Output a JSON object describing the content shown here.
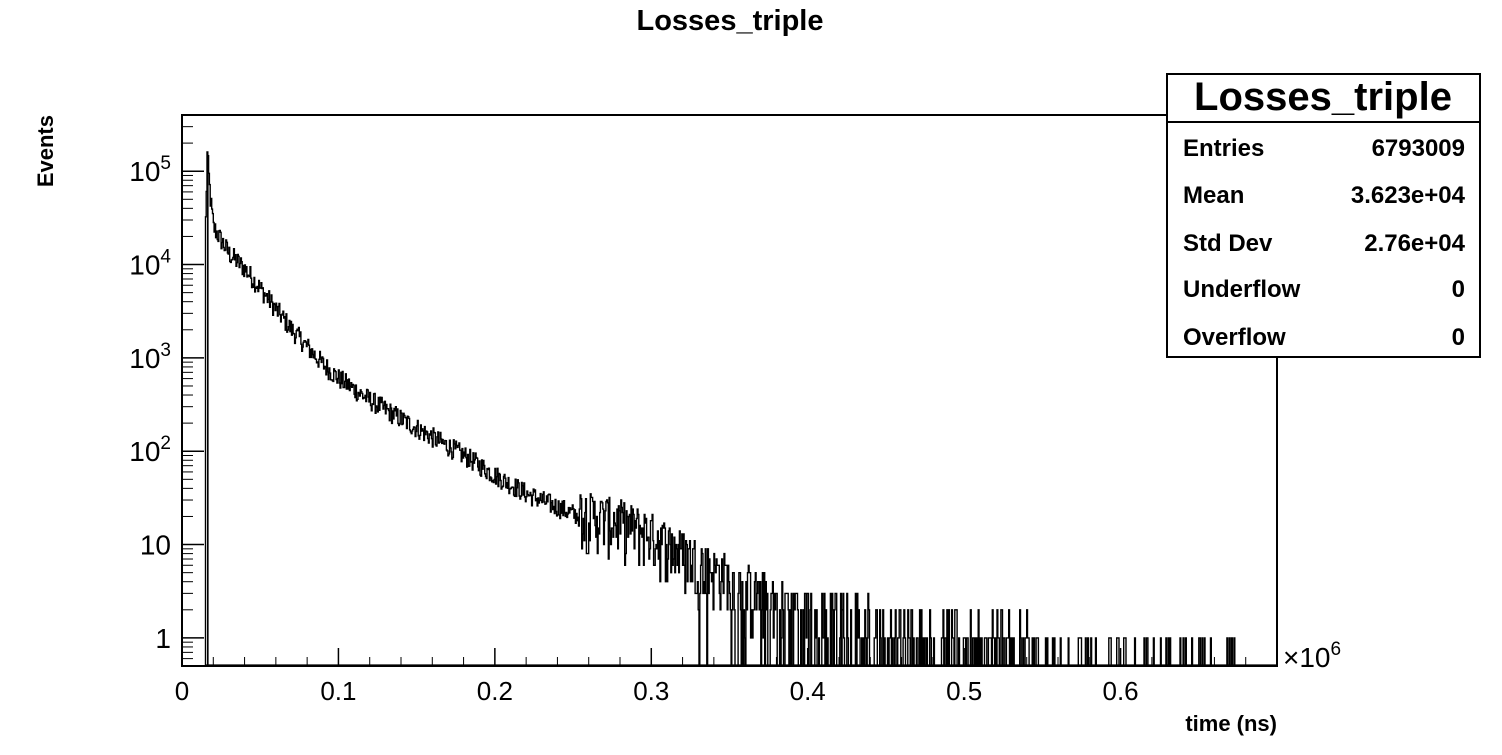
{
  "chart_data": {
    "type": "histogram",
    "title": "Losses_triple",
    "xlabel": "time (ns)",
    "ylabel": "Events",
    "x_multiplier_label": "×10",
    "x_multiplier_exp": "6",
    "xlim": [
      0,
      0.7
    ],
    "ylim": [
      0.5,
      400000
    ],
    "yscale": "log",
    "grid": false,
    "x_ticks": [
      {
        "value": 0,
        "label": "0"
      },
      {
        "value": 0.1,
        "label": "0.1"
      },
      {
        "value": 0.2,
        "label": "0.2"
      },
      {
        "value": 0.3,
        "label": "0.3"
      },
      {
        "value": 0.4,
        "label": "0.4"
      },
      {
        "value": 0.5,
        "label": "0.5"
      },
      {
        "value": 0.6,
        "label": "0.6"
      }
    ],
    "y_ticks": [
      {
        "value": 1,
        "base": "1",
        "exp": ""
      },
      {
        "value": 10,
        "base": "10",
        "exp": ""
      },
      {
        "value": 100,
        "base": "10",
        "exp": "2"
      },
      {
        "value": 1000,
        "base": "10",
        "exp": "3"
      },
      {
        "value": 10000,
        "base": "10",
        "exp": "4"
      },
      {
        "value": 100000,
        "base": "10",
        "exp": "5"
      }
    ],
    "series": [
      {
        "x": [
          0.015,
          0.016,
          0.018,
          0.02,
          0.025,
          0.03,
          0.04,
          0.05,
          0.06,
          0.07,
          0.08,
          0.09,
          0.1,
          0.12,
          0.14,
          0.16,
          0.18,
          0.2,
          0.22,
          0.24,
          0.26,
          0.28,
          0.3,
          0.32,
          0.34,
          0.36,
          0.38,
          0.4,
          0.42,
          0.44,
          0.46,
          0.48,
          0.5,
          0.53,
          0.56,
          0.6,
          0.63,
          0.66,
          0.68
        ],
        "y": [
          30000,
          150000,
          50000,
          25000,
          18000,
          13000,
          9000,
          5500,
          3300,
          2000,
          1300,
          850,
          600,
          350,
          220,
          140,
          90,
          55,
          35,
          25,
          18,
          15,
          11,
          7,
          4.5,
          3,
          2.2,
          1.8,
          1.5,
          1.3,
          1.1,
          1,
          1,
          0.9,
          0.8,
          0.7,
          0.6,
          0.6,
          0.5
        ]
      }
    ],
    "stats_box": {
      "title": "Losses_triple",
      "rows": [
        {
          "label": "Entries",
          "value": "6793009"
        },
        {
          "label": "Mean",
          "value": "3.623e+04"
        },
        {
          "label": "Std Dev",
          "value": "2.76e+04"
        },
        {
          "label": "Underflow",
          "value": "0"
        },
        {
          "label": "Overflow",
          "value": "0"
        }
      ]
    },
    "colors": {
      "line": "#000000",
      "frame": "#000000",
      "background": "#ffffff"
    }
  }
}
